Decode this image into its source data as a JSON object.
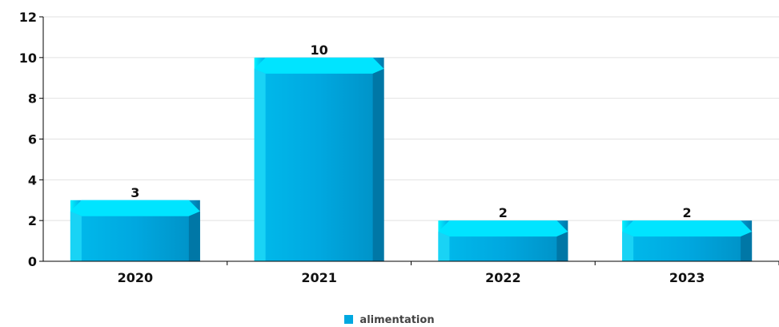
{
  "chart_data": {
    "type": "bar",
    "categories": [
      "2020",
      "2021",
      "2022",
      "2023"
    ],
    "series": [
      {
        "name": "alimentation",
        "values": [
          3,
          10,
          2,
          2
        ]
      }
    ],
    "ylim": [
      0,
      12
    ],
    "yticks": [
      "0",
      "2",
      "4",
      "6",
      "8",
      "10",
      "12"
    ],
    "data_labels": [
      "3",
      "10",
      "2",
      "2"
    ],
    "grid": true,
    "legend_position": "bottom-center",
    "colors": {
      "bar": "#00a8e0",
      "bar_highlight": "#00e6ff",
      "bar_shadow": "#0077a6",
      "grid": "#e2e2e2",
      "axis": "#000000"
    }
  }
}
